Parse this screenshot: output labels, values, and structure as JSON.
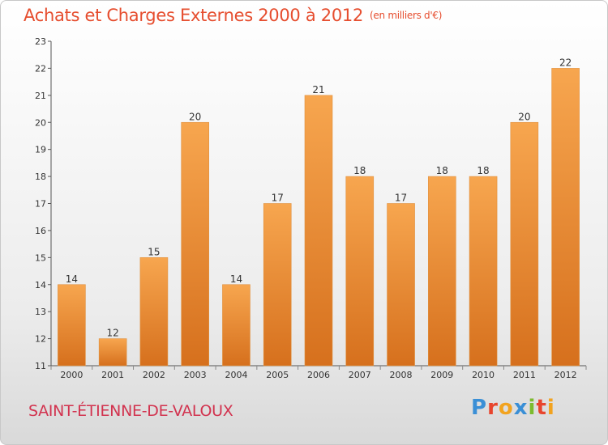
{
  "chart_data": {
    "type": "bar",
    "title": "Achats et Charges Externes 2000 à 2012",
    "subtitle": "(en milliers d'€)",
    "categories": [
      "2000",
      "2001",
      "2002",
      "2003",
      "2004",
      "2005",
      "2006",
      "2007",
      "2008",
      "2009",
      "2010",
      "2011",
      "2012"
    ],
    "values": [
      14,
      12,
      15,
      20,
      14,
      17,
      21,
      18,
      17,
      18,
      18,
      20,
      22
    ],
    "ylim": [
      11,
      23
    ],
    "yticks": [
      "11",
      "12",
      "13",
      "14",
      "15",
      "16",
      "17",
      "18",
      "19",
      "20",
      "21",
      "22",
      "23"
    ],
    "grid": false,
    "legend": "none",
    "colors": {
      "bar_light": "#f7a64f",
      "bar_dark": "#d6701d",
      "title": "#e64d2e"
    }
  },
  "footer": {
    "location": "SAINT-ÉTIENNE-DE-VALOUX",
    "brand_letters": [
      "P",
      "r",
      "o",
      "x",
      "i",
      "t",
      "i"
    ],
    "brand_colors": [
      "#3a8fd6",
      "#e8452d",
      "#f2a31f",
      "#3a8fd6",
      "#7cbb2e",
      "#e8452d",
      "#f2a31f"
    ]
  }
}
